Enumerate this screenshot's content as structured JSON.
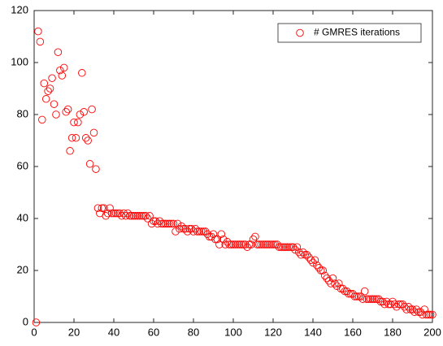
{
  "chart_data": {
    "type": "scatter",
    "x": [
      1,
      2,
      3,
      4,
      5,
      6,
      7,
      8,
      9,
      10,
      11,
      12,
      13,
      14,
      15,
      16,
      17,
      18,
      19,
      20,
      21,
      22,
      23,
      24,
      25,
      26,
      27,
      28,
      29,
      30,
      31,
      32,
      33,
      34,
      35,
      36,
      37,
      38,
      39,
      40,
      41,
      42,
      43,
      44,
      45,
      46,
      47,
      48,
      49,
      50,
      51,
      52,
      53,
      54,
      55,
      56,
      57,
      58,
      59,
      60,
      61,
      62,
      63,
      64,
      65,
      66,
      67,
      68,
      69,
      70,
      71,
      72,
      73,
      74,
      75,
      76,
      77,
      78,
      79,
      80,
      81,
      82,
      83,
      84,
      85,
      86,
      87,
      88,
      89,
      90,
      91,
      92,
      93,
      94,
      95,
      96,
      97,
      98,
      99,
      100,
      101,
      102,
      103,
      104,
      105,
      106,
      107,
      108,
      109,
      110,
      111,
      112,
      113,
      114,
      115,
      116,
      117,
      118,
      119,
      120,
      121,
      122,
      123,
      124,
      125,
      126,
      127,
      128,
      129,
      130,
      131,
      132,
      133,
      134,
      135,
      136,
      137,
      138,
      139,
      140,
      141,
      142,
      143,
      144,
      145,
      146,
      147,
      148,
      149,
      150,
      151,
      152,
      153,
      154,
      155,
      156,
      157,
      158,
      159,
      160,
      161,
      162,
      163,
      164,
      165,
      166,
      167,
      168,
      169,
      170,
      171,
      172,
      173,
      174,
      175,
      176,
      177,
      178,
      179,
      180,
      181,
      182,
      183,
      184,
      185,
      186,
      187,
      188,
      189,
      190,
      191,
      192,
      193,
      194,
      195,
      196,
      197,
      198,
      199,
      200
    ],
    "series": [
      {
        "name": "# GMRES iterations",
        "color": "#ff0000",
        "values": [
          0,
          112,
          108,
          78,
          92,
          86,
          89,
          90,
          94,
          84,
          80,
          104,
          97,
          95,
          98,
          81,
          82,
          66,
          71,
          77,
          71,
          77,
          80,
          96,
          81,
          71,
          70,
          61,
          82,
          73,
          59,
          44,
          42,
          44,
          44,
          41,
          42,
          44,
          42,
          42,
          42,
          42,
          42,
          41,
          42,
          41,
          42,
          41,
          41,
          41,
          41,
          41,
          41,
          41,
          41,
          41,
          40,
          41,
          38,
          39,
          39,
          38,
          39,
          38,
          38,
          38,
          38,
          38,
          38,
          38,
          35,
          38,
          36,
          37,
          36,
          36,
          35,
          36,
          36,
          35,
          36,
          35,
          35,
          35,
          35,
          35,
          34,
          33,
          33,
          34,
          32,
          32,
          30,
          34,
          32,
          30,
          31,
          30,
          30,
          30,
          30,
          30,
          30,
          30,
          30,
          30,
          29,
          30,
          30,
          32,
          33,
          30,
          30,
          30,
          30,
          30,
          30,
          30,
          30,
          30,
          30,
          30,
          29,
          29,
          29,
          29,
          29,
          29,
          29,
          29,
          28,
          29,
          27,
          26,
          27,
          26,
          26,
          25,
          24,
          23,
          24,
          22,
          21,
          20,
          20,
          18,
          17,
          16,
          15,
          17,
          15,
          14,
          15,
          13,
          13,
          12,
          12,
          11,
          11,
          11,
          10,
          10,
          10,
          10,
          9,
          12,
          9,
          9,
          9,
          9,
          9,
          9,
          9,
          8,
          8,
          7,
          8,
          7,
          7,
          8,
          7,
          6,
          7,
          7,
          7,
          6,
          5,
          6,
          5,
          5,
          4,
          5,
          4,
          4,
          3,
          5,
          3,
          3,
          3,
          3
        ]
      }
    ],
    "xlim": [
      0,
      200
    ],
    "xticks": [
      0,
      20,
      40,
      60,
      80,
      100,
      120,
      140,
      160,
      180,
      200
    ],
    "ylim": [
      0,
      120
    ],
    "yticks": [
      0,
      20,
      40,
      60,
      80,
      100,
      120
    ],
    "legend": "top-right"
  }
}
